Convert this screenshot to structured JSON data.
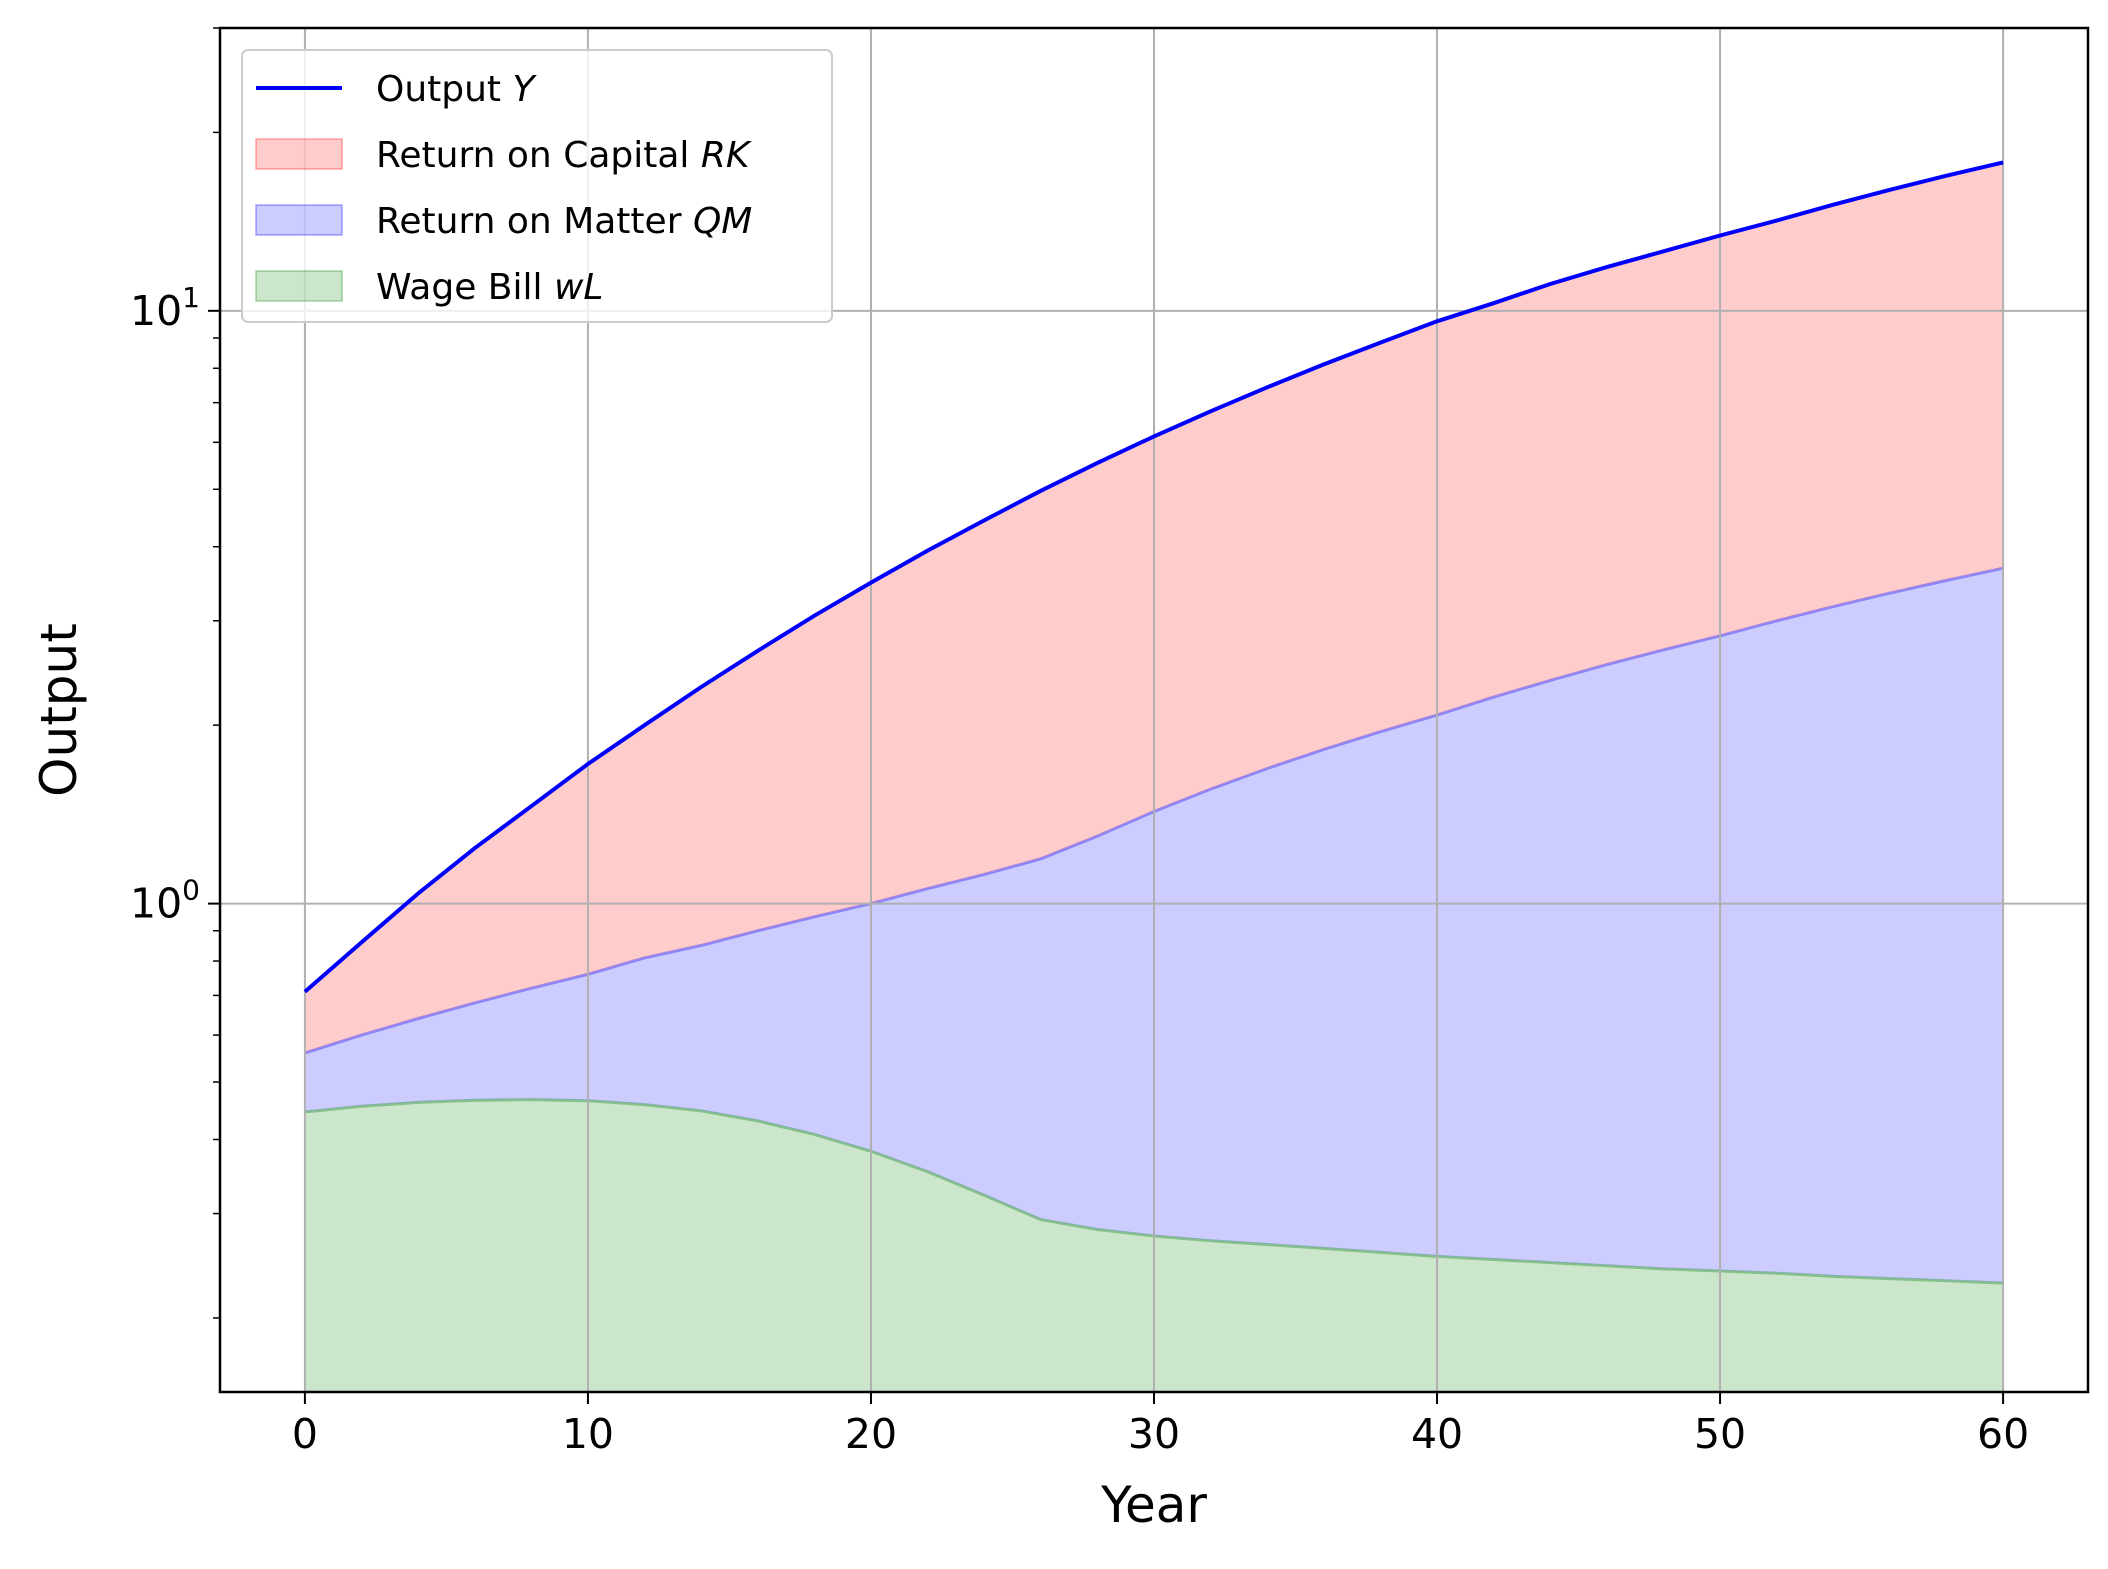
{
  "chart_data": {
    "type": "area",
    "xlabel": "Year",
    "ylabel": "Output",
    "xlim": [
      -3,
      63
    ],
    "ylim": [
      0.15,
      30
    ],
    "yscale": "log",
    "grid": true,
    "legend_position": "top-left",
    "x_ticks": [
      0,
      10,
      20,
      30,
      40,
      50,
      60
    ],
    "y_ticks": [
      {
        "value": 1,
        "base": "10",
        "exp": "0"
      },
      {
        "value": 10,
        "base": "10",
        "exp": "1"
      }
    ],
    "x": [
      0,
      2,
      4,
      6,
      8,
      10,
      12,
      14,
      16,
      18,
      20,
      22,
      24,
      26,
      28,
      30,
      32,
      34,
      36,
      38,
      40,
      42,
      44,
      46,
      48,
      50,
      52,
      54,
      56,
      58,
      60
    ],
    "series": [
      {
        "name": "Output Y",
        "kind": "line",
        "color": "#0000ff",
        "values": [
          0.71,
          0.86,
          1.04,
          1.24,
          1.46,
          1.72,
          2.0,
          2.32,
          2.67,
          3.06,
          3.48,
          3.94,
          4.43,
          4.97,
          5.54,
          6.14,
          6.77,
          7.43,
          8.12,
          8.84,
          9.6,
          10.3,
          11.1,
          11.85,
          12.6,
          13.4,
          14.2,
          15.1,
          16.0,
          16.9,
          17.8
        ]
      },
      {
        "name": "Return on Capital RK",
        "kind": "area",
        "color": "#ff0000",
        "opacity": 0.2,
        "lower": "Return on Matter QM",
        "values": [
          0.71,
          0.86,
          1.04,
          1.24,
          1.46,
          1.72,
          2.0,
          2.32,
          2.67,
          3.06,
          3.48,
          3.94,
          4.43,
          4.97,
          5.54,
          6.14,
          6.77,
          7.43,
          8.12,
          8.84,
          9.6,
          10.3,
          11.1,
          11.85,
          12.6,
          13.4,
          14.2,
          15.1,
          16.0,
          16.9,
          17.8
        ]
      },
      {
        "name": "Return on Matter QM",
        "kind": "area",
        "color": "#0000ff",
        "opacity": 0.2,
        "lower": "Wage Bill wL",
        "values": [
          0.56,
          0.6,
          0.64,
          0.68,
          0.72,
          0.76,
          0.81,
          0.85,
          0.9,
          0.95,
          1.0,
          1.06,
          1.12,
          1.19,
          1.3,
          1.43,
          1.56,
          1.69,
          1.82,
          1.95,
          2.08,
          2.23,
          2.38,
          2.53,
          2.68,
          2.83,
          3.0,
          3.17,
          3.34,
          3.51,
          3.68
        ]
      },
      {
        "name": "Wage Bill wL",
        "kind": "area",
        "color": "#008000",
        "opacity": 0.2,
        "lower": "baseline",
        "values": [
          0.445,
          0.455,
          0.462,
          0.466,
          0.467,
          0.465,
          0.458,
          0.447,
          0.43,
          0.408,
          0.382,
          0.353,
          0.322,
          0.293,
          0.282,
          0.275,
          0.27,
          0.266,
          0.262,
          0.258,
          0.254,
          0.251,
          0.248,
          0.245,
          0.242,
          0.24,
          0.238,
          0.235,
          0.233,
          0.231,
          0.229
        ]
      }
    ],
    "legend": [
      {
        "label": "Output ",
        "math": "Y",
        "swatch": "line",
        "color": "#0000ff"
      },
      {
        "label": "Return on Capital ",
        "math": "RK",
        "swatch": "patch",
        "color": "#ff0000"
      },
      {
        "label": "Return on Matter ",
        "math": "QM",
        "swatch": "patch",
        "color": "#0000ff"
      },
      {
        "label": "Wage Bill ",
        "math": "wL",
        "swatch": "patch",
        "color": "#008000"
      }
    ]
  }
}
